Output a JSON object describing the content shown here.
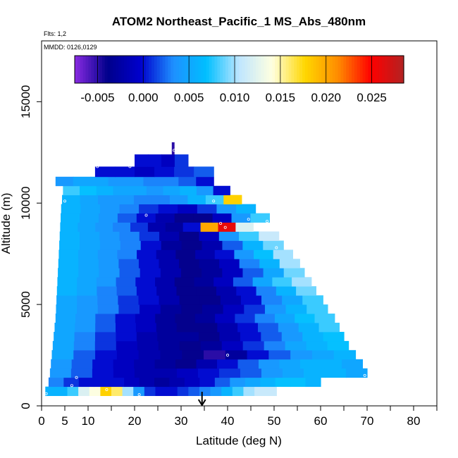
{
  "chart_data": {
    "type": "heatmap",
    "title": "ATOM2 Northeast_Pacific_1 MS_Abs_480nm",
    "notes": {
      "flights": "Flts: 1,2",
      "dates": "MMDD: 0126,0129"
    },
    "xlabel": "Latitude (deg N)",
    "ylabel": "Altitude (m)",
    "xlim": [
      0,
      85
    ],
    "ylim": [
      0,
      18000
    ],
    "x_ticks": [
      0,
      5,
      10,
      20,
      30,
      40,
      50,
      60,
      70,
      80
    ],
    "x_tick_labels": [
      "0",
      "5",
      "10",
      "20",
      "30",
      "40",
      "50",
      "60",
      "70",
      "80"
    ],
    "x_minor_ticks": [
      15,
      25,
      35,
      45,
      55,
      65,
      75,
      85
    ],
    "y_ticks": [
      0,
      5000,
      10000,
      15000
    ],
    "y_tick_labels": [
      "0",
      "5000",
      "10000",
      "15000"
    ],
    "colorbar": {
      "range": [
        -0.0075,
        0.0285
      ],
      "ticks": [
        -0.005,
        0.0,
        0.005,
        0.01,
        0.015,
        0.02,
        0.025
      ],
      "tick_labels": [
        "-0.005",
        "0.000",
        "0.005",
        "0.010",
        "0.015",
        "0.020",
        "0.025"
      ],
      "colors": [
        "#8a2be2",
        "#00008b",
        "#0000cd",
        "#1e90ff",
        "#00bfff",
        "#bfe6ff",
        "#ffffe0",
        "#ffd700",
        "#ff8c00",
        "#ff0000",
        "#b22222"
      ]
    },
    "arrow_latitude": 34.5,
    "layers": [
      {
        "alt": [
          500,
          950
        ],
        "lat": [
          0.8,
          50.5
        ],
        "values": [
          0.006,
          0.006,
          0.008,
          0.012,
          0.014,
          0.018,
          0.016,
          0.01,
          0.004,
          0.001,
          0.0,
          0.0,
          0.001,
          0.002,
          0.003,
          0.004,
          0.006,
          0.008,
          0.01,
          0.011,
          0.011
        ]
      },
      {
        "alt": [
          950,
          1400
        ],
        "lat": [
          1.5,
          60.0
        ],
        "values": [
          0.003,
          0.001,
          0.0,
          0.0,
          0.0,
          -0.001,
          -0.002,
          -0.003,
          -0.002,
          -0.001,
          0.0,
          0.002,
          0.004,
          0.005,
          0.006,
          0.007,
          0.007,
          0.006
        ]
      },
      {
        "alt": [
          1400,
          1850
        ],
        "lat": [
          1.8,
          70.0
        ],
        "values": [
          0.004,
          0.002,
          0.0,
          -0.001,
          -0.002,
          -0.002,
          -0.001,
          0.0,
          0.001,
          0.002,
          0.004,
          0.005,
          0.006,
          0.006,
          0.005
        ]
      },
      {
        "alt": [
          1850,
          2300
        ],
        "lat": [
          2.0,
          69.0
        ],
        "values": [
          0.004,
          0.002,
          0.0,
          -0.001,
          -0.002,
          -0.003,
          -0.004,
          -0.002,
          0.0,
          0.002,
          0.004,
          0.005,
          0.006,
          0.006,
          0.005
        ]
      },
      {
        "alt": [
          2300,
          2750
        ],
        "lat": [
          2.2,
          67.5
        ],
        "values": [
          0.005,
          0.002,
          0.0,
          -0.001,
          -0.002,
          -0.003,
          -0.004,
          -0.005,
          -0.003,
          0.0,
          0.002,
          0.004,
          0.005,
          0.006
        ]
      },
      {
        "alt": [
          2750,
          3200
        ],
        "lat": [
          2.4,
          66.0
        ],
        "values": [
          0.005,
          0.003,
          0.001,
          -0.001,
          -0.002,
          -0.003,
          -0.004,
          -0.003,
          -0.001,
          0.001,
          0.003,
          0.005,
          0.006,
          0.007
        ]
      },
      {
        "alt": [
          3200,
          3650
        ],
        "lat": [
          2.6,
          65.0
        ],
        "values": [
          0.005,
          0.003,
          0.001,
          0.0,
          -0.002,
          -0.003,
          -0.003,
          -0.004,
          -0.002,
          0.0,
          0.002,
          0.004,
          0.006,
          0.007
        ]
      },
      {
        "alt": [
          3650,
          4100
        ],
        "lat": [
          2.8,
          64.0
        ],
        "values": [
          0.005,
          0.004,
          0.002,
          0.0,
          -0.001,
          -0.003,
          -0.004,
          -0.004,
          -0.002,
          0.0,
          0.002,
          0.004,
          0.006,
          0.008
        ]
      },
      {
        "alt": [
          4100,
          4550
        ],
        "lat": [
          3.0,
          63.0
        ],
        "values": [
          0.005,
          0.004,
          0.002,
          0.0,
          -0.001,
          -0.003,
          -0.004,
          -0.003,
          -0.001,
          0.001,
          0.003,
          0.005,
          0.007,
          0.008
        ]
      },
      {
        "alt": [
          4550,
          5000
        ],
        "lat": [
          3.1,
          61.5
        ],
        "values": [
          0.005,
          0.004,
          0.003,
          0.001,
          -0.001,
          -0.003,
          -0.004,
          -0.003,
          -0.001,
          0.001,
          0.004,
          0.006,
          0.008
        ]
      },
      {
        "alt": [
          5000,
          5450
        ],
        "lat": [
          3.2,
          60.5
        ],
        "values": [
          0.005,
          0.004,
          0.003,
          0.001,
          0.0,
          -0.002,
          -0.004,
          -0.004,
          -0.002,
          0.0,
          0.003,
          0.005,
          0.008
        ]
      },
      {
        "alt": [
          5450,
          5900
        ],
        "lat": [
          3.3,
          59.0
        ],
        "values": [
          0.006,
          0.005,
          0.003,
          0.002,
          0.0,
          -0.002,
          -0.004,
          -0.004,
          -0.002,
          0.0,
          0.003,
          0.006,
          0.009
        ]
      },
      {
        "alt": [
          5900,
          6350
        ],
        "lat": [
          3.4,
          58.0
        ],
        "values": [
          0.006,
          0.005,
          0.004,
          0.002,
          0.0,
          -0.002,
          -0.004,
          -0.003,
          -0.001,
          0.002,
          0.005,
          0.008,
          0.01
        ]
      },
      {
        "alt": [
          6350,
          6800
        ],
        "lat": [
          3.5,
          56.5
        ],
        "values": [
          0.006,
          0.005,
          0.004,
          0.002,
          0.0,
          -0.002,
          -0.004,
          -0.003,
          -0.001,
          0.002,
          0.005,
          0.009
        ]
      },
      {
        "alt": [
          6800,
          7250
        ],
        "lat": [
          3.6,
          55.5
        ],
        "values": [
          0.006,
          0.005,
          0.004,
          0.002,
          0.0,
          -0.002,
          -0.004,
          -0.003,
          -0.001,
          0.003,
          0.006,
          0.01
        ]
      },
      {
        "alt": [
          7250,
          7700
        ],
        "lat": [
          3.7,
          54.0
        ],
        "values": [
          0.006,
          0.005,
          0.004,
          0.003,
          0.0,
          -0.002,
          -0.004,
          -0.002,
          0.0,
          0.004,
          0.007,
          0.01
        ]
      },
      {
        "alt": [
          7700,
          8150
        ],
        "lat": [
          3.8,
          52.0
        ],
        "values": [
          0.006,
          0.005,
          0.004,
          0.003,
          0.0,
          -0.003,
          -0.004,
          -0.002,
          0.002,
          0.006,
          0.009
        ]
      },
      {
        "alt": [
          8150,
          8600
        ],
        "lat": [
          3.9,
          51.0
        ],
        "values": [
          0.006,
          0.005,
          0.004,
          0.003,
          0.001,
          -0.002,
          -0.004,
          -0.001,
          0.004,
          0.008,
          0.011
        ]
      },
      {
        "alt": [
          8600,
          9050
        ],
        "lat": [
          4.0,
          45.5
        ],
        "values": [
          0.006,
          0.005,
          0.004,
          0.003,
          0.001,
          -0.002,
          -0.003,
          0.0,
          0.02,
          0.026,
          0.012
        ]
      },
      {
        "alt": [
          9050,
          9500
        ],
        "lat": [
          4.1,
          49.0
        ],
        "values": [
          0.006,
          0.005,
          0.004,
          0.002,
          0.0,
          -0.002,
          -0.004,
          -0.004,
          -0.001,
          0.004,
          0.008
        ]
      },
      {
        "alt": [
          9500,
          9950
        ],
        "lat": [
          4.2,
          46.0
        ],
        "values": [
          0.006,
          0.005,
          0.004,
          0.003,
          0.001,
          0.0,
          -0.001,
          0.001,
          0.004,
          0.006
        ]
      },
      {
        "alt": [
          9950,
          10400
        ],
        "lat": [
          4.4,
          43.0
        ],
        "values": [
          0.006,
          0.005,
          0.004,
          0.004,
          0.003,
          0.003,
          0.004,
          0.006,
          0.008,
          0.018
        ]
      },
      {
        "alt": [
          10400,
          10850
        ],
        "lat": [
          4.6,
          40.5
        ],
        "values": [
          0.008,
          0.007,
          0.006,
          0.005,
          0.005,
          0.004,
          0.005,
          0.006,
          0.004,
          0.0
        ]
      },
      {
        "alt": [
          10850,
          11300
        ],
        "lat": [
          3.0,
          37.0
        ],
        "values": [
          0.004,
          0.005,
          0.005,
          0.004,
          0.004,
          0.003,
          0.003,
          0.002,
          0.0
        ]
      },
      {
        "alt": [
          11300,
          11800
        ],
        "lat": [
          11.5,
          37.0
        ],
        "values": [
          0.0,
          0.0,
          -0.001,
          0.0,
          0.001,
          0.002
        ]
      },
      {
        "alt": [
          11800,
          12400
        ],
        "lat": [
          20.0,
          31.5
        ],
        "values": [
          0.0,
          0.0,
          -0.001,
          0.001
        ]
      },
      {
        "alt": [
          12400,
          13000
        ],
        "lat": [
          28.0,
          28.5
        ],
        "values": [
          -0.005
        ]
      }
    ],
    "sample_points": [
      [
        1.0,
        600
      ],
      [
        2.5,
        11200
      ],
      [
        5.0,
        10100
      ],
      [
        6.5,
        1000
      ],
      [
        7.5,
        1400
      ],
      [
        12.0,
        11800
      ],
      [
        14.0,
        800
      ],
      [
        19.0,
        11800
      ],
      [
        21.0,
        550
      ],
      [
        22.5,
        9400
      ],
      [
        28.5,
        12600
      ],
      [
        37.0,
        10100
      ],
      [
        38.5,
        9000
      ],
      [
        39.5,
        8800
      ],
      [
        40.0,
        2500
      ],
      [
        44.5,
        9200
      ],
      [
        48.5,
        9100
      ],
      [
        50.5,
        7800
      ],
      [
        69.5,
        1500
      ]
    ]
  }
}
